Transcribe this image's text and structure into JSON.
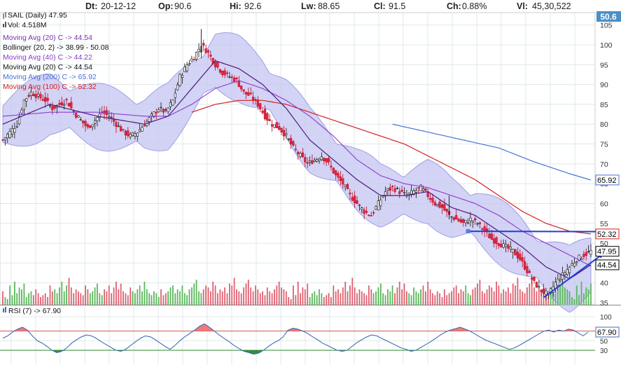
{
  "header": {
    "date_label": "Dt:",
    "date_value": "20-12-12",
    "open_label": "Op:",
    "open_value": "90.6",
    "high_label": "Hi:",
    "high_value": "92.6",
    "low_label": "Lw:",
    "low_value": "88.65",
    "close_label": "Cl:",
    "close_value": "91.5",
    "change_label": "Ch:",
    "change_value": "0.88%",
    "volume_label": "Vl:",
    "volume_value": "45,30,522"
  },
  "legend": {
    "title": "SAIL (Daily) 47.95",
    "volume": "Vol: 4.518M",
    "items": [
      {
        "text": "Moving Avg (20) C -> 44.54",
        "color": "#7b2fb8"
      },
      {
        "text": "Bollinger (20, 2) -> 38.99 - 50.08",
        "color": "#111111"
      },
      {
        "text": "Moving Avg (40) C -> 44.22",
        "color": "#8a3ccf"
      },
      {
        "text": "Moving Avg (20) C -> 44.54",
        "color": "#111111"
      },
      {
        "text": "Moving Avg (200) C -> 65.92",
        "color": "#4a72d6"
      },
      {
        "text": "Moving Avg (100) C -> 52.32",
        "color": "#d62020"
      }
    ]
  },
  "rsi_legend": "RSI (7) -> 67.90",
  "corner_value": "50.6",
  "chart_data": [
    {
      "type": "candlestick",
      "title": "SAIL (Daily) 47.95",
      "ylim": [
        35,
        108
      ],
      "y_ticks": [
        35,
        40,
        45,
        50,
        55,
        60,
        65,
        70,
        75,
        80,
        85,
        90,
        95,
        100,
        105
      ],
      "price_tags": [
        {
          "value": "65.92",
          "y": 65.92,
          "color": "#4a72d6"
        },
        {
          "value": "52.32",
          "y": 52.32,
          "color": "#d62020"
        },
        {
          "value": "47.95",
          "y": 47.95,
          "color": "#000000"
        },
        {
          "value": "44.54",
          "y": 44.54,
          "color": "#000000"
        }
      ],
      "price_path": [
        [
          0,
          76
        ],
        [
          3,
          78
        ],
        [
          6,
          80
        ],
        [
          9,
          86
        ],
        [
          12,
          88
        ],
        [
          15,
          87
        ],
        [
          18,
          86
        ],
        [
          21,
          84
        ],
        [
          24,
          85
        ],
        [
          27,
          86
        ],
        [
          30,
          83
        ],
        [
          33,
          81
        ],
        [
          36,
          79
        ],
        [
          39,
          81
        ],
        [
          42,
          83
        ],
        [
          45,
          82
        ],
        [
          48,
          80
        ],
        [
          51,
          78
        ],
        [
          54,
          77
        ],
        [
          57,
          78
        ],
        [
          60,
          80
        ],
        [
          63,
          82
        ],
        [
          66,
          84
        ],
        [
          69,
          83
        ],
        [
          72,
          86
        ],
        [
          75,
          92
        ],
        [
          78,
          95
        ],
        [
          81,
          97
        ],
        [
          84,
          100
        ],
        [
          87,
          98
        ],
        [
          90,
          95
        ],
        [
          93,
          93
        ],
        [
          96,
          92
        ],
        [
          99,
          91
        ],
        [
          102,
          88
        ],
        [
          105,
          87
        ],
        [
          108,
          85
        ],
        [
          111,
          82
        ],
        [
          114,
          80
        ],
        [
          117,
          79
        ],
        [
          120,
          77
        ],
        [
          123,
          74
        ],
        [
          126,
          72
        ],
        [
          129,
          70
        ],
        [
          132,
          71
        ],
        [
          135,
          72
        ],
        [
          138,
          70
        ],
        [
          141,
          67
        ],
        [
          144,
          65
        ],
        [
          147,
          62
        ],
        [
          150,
          60
        ],
        [
          153,
          58
        ],
        [
          156,
          57
        ],
        [
          159,
          60
        ],
        [
          162,
          63
        ],
        [
          165,
          64
        ],
        [
          168,
          63
        ],
        [
          171,
          62
        ],
        [
          174,
          63
        ],
        [
          177,
          64
        ],
        [
          180,
          62
        ],
        [
          183,
          60
        ],
        [
          186,
          59
        ],
        [
          189,
          57
        ],
        [
          192,
          56
        ],
        [
          195,
          55
        ],
        [
          198,
          56
        ],
        [
          201,
          55
        ],
        [
          204,
          53
        ],
        [
          207,
          51
        ],
        [
          210,
          50
        ],
        [
          213,
          49
        ],
        [
          216,
          48
        ],
        [
          219,
          46
        ],
        [
          222,
          43
        ],
        [
          225,
          40
        ],
        [
          228,
          38
        ],
        [
          231,
          37
        ],
        [
          234,
          40
        ],
        [
          237,
          42
        ],
        [
          240,
          44
        ],
        [
          243,
          46
        ],
        [
          246,
          47
        ],
        [
          249,
          47.95
        ]
      ],
      "ma20_path": [
        [
          0,
          80
        ],
        [
          20,
          85
        ],
        [
          40,
          82
        ],
        [
          60,
          80
        ],
        [
          70,
          82
        ],
        [
          80,
          89
        ],
        [
          90,
          96
        ],
        [
          100,
          94
        ],
        [
          110,
          90
        ],
        [
          120,
          84
        ],
        [
          130,
          76
        ],
        [
          140,
          71
        ],
        [
          150,
          66
        ],
        [
          160,
          62
        ],
        [
          170,
          62
        ],
        [
          180,
          63
        ],
        [
          190,
          59
        ],
        [
          200,
          57
        ],
        [
          210,
          53
        ],
        [
          220,
          49
        ],
        [
          230,
          44
        ],
        [
          240,
          41
        ],
        [
          249,
          44.54
        ]
      ],
      "ma40_path": [
        [
          0,
          82
        ],
        [
          20,
          83
        ],
        [
          40,
          83
        ],
        [
          60,
          82
        ],
        [
          70,
          82
        ],
        [
          80,
          85
        ],
        [
          90,
          89
        ],
        [
          100,
          91
        ],
        [
          110,
          89
        ],
        [
          120,
          86
        ],
        [
          130,
          82
        ],
        [
          140,
          77
        ],
        [
          150,
          71
        ],
        [
          160,
          67
        ],
        [
          170,
          65
        ],
        [
          180,
          64
        ],
        [
          190,
          62
        ],
        [
          200,
          60
        ],
        [
          210,
          57
        ],
        [
          220,
          53
        ],
        [
          230,
          50
        ],
        [
          240,
          47
        ],
        [
          249,
          44.22
        ]
      ],
      "ma100_path": [
        [
          80,
          83
        ],
        [
          90,
          85
        ],
        [
          100,
          86
        ],
        [
          110,
          86
        ],
        [
          120,
          85
        ],
        [
          130,
          83
        ],
        [
          140,
          81
        ],
        [
          150,
          79
        ],
        [
          160,
          77
        ],
        [
          170,
          75
        ],
        [
          180,
          72
        ],
        [
          190,
          69
        ],
        [
          200,
          66
        ],
        [
          210,
          62
        ],
        [
          220,
          58
        ],
        [
          230,
          55
        ],
        [
          240,
          53
        ],
        [
          249,
          52.32
        ]
      ],
      "ma200_path": [
        [
          165,
          80
        ],
        [
          180,
          78
        ],
        [
          195,
          76
        ],
        [
          210,
          74
        ],
        [
          225,
          70.5
        ],
        [
          240,
          67.5
        ],
        [
          249,
          65.92
        ]
      ],
      "bollinger_width": 6.5,
      "trendlines": [
        {
          "from": [
            197,
            53
          ],
          "to": [
            249,
            52.9
          ],
          "color": "#1f3fd0"
        },
        {
          "from": [
            229,
            36.3
          ],
          "to": [
            249,
            47.4
          ],
          "color": "#1f3fd0"
        }
      ]
    },
    {
      "type": "bar",
      "title": "Vol: 4.518M",
      "note": "volume histogram, relative heights 0-1",
      "values": [
        0.35,
        0.2,
        0.15,
        0.5,
        0.25,
        0.6,
        0.3,
        0.45,
        0.4,
        0.55,
        0.2,
        0.3,
        0.35,
        0.25,
        0.4,
        0.3,
        0.2,
        0.25,
        0.3,
        0.2,
        0.5,
        0.35,
        0.4,
        0.3,
        0.45,
        0.6,
        0.35,
        0.5,
        0.7,
        0.45,
        0.3,
        0.4,
        0.35,
        0.3,
        0.25,
        0.5,
        0.4,
        0.3,
        0.35,
        0.45,
        0.55,
        0.3,
        0.25,
        0.4,
        0.35,
        0.5,
        0.3,
        0.45,
        0.6,
        0.4,
        0.55,
        0.35,
        0.3,
        0.25,
        0.45,
        0.35,
        0.3,
        0.4,
        0.5,
        0.35,
        0.6,
        0.4,
        0.3,
        0.25,
        0.35,
        0.3,
        0.2,
        0.4,
        0.25,
        0.3,
        0.35,
        0.45,
        0.5,
        0.3,
        0.4,
        0.35,
        0.5,
        0.3,
        0.25,
        0.4,
        0.45,
        0.55,
        0.65,
        0.35,
        0.3,
        0.4,
        0.5,
        0.45,
        0.35,
        0.6,
        0.5,
        0.3,
        0.4,
        0.35,
        0.45,
        0.3,
        0.55,
        0.5,
        0.7,
        0.4,
        0.35,
        0.3,
        0.45,
        0.55,
        0.65,
        0.45,
        0.35,
        0.5,
        0.4,
        0.3,
        0.35,
        0.25,
        0.45,
        0.35,
        0.3,
        0.4,
        0.5,
        0.6,
        0.45,
        0.4
      ]
    },
    {
      "type": "line",
      "title": "RSI (7) -> 67.90",
      "ylim": [
        0,
        100
      ],
      "y_ticks": [
        30,
        50,
        100
      ],
      "overbought": 70,
      "oversold": 30,
      "last_value": "67.90",
      "values": [
        55,
        60,
        68,
        74,
        78,
        72,
        60,
        50,
        45,
        38,
        30,
        25,
        28,
        35,
        45,
        52,
        58,
        62,
        60,
        55,
        48,
        42,
        36,
        30,
        28,
        32,
        40,
        48,
        55,
        60,
        58,
        52,
        45,
        38,
        32,
        40,
        50,
        58,
        65,
        72,
        80,
        85,
        78,
        70,
        62,
        55,
        48,
        40,
        34,
        28,
        25,
        22,
        24,
        30,
        38,
        45,
        50,
        58,
        72,
        76,
        74,
        70,
        65,
        58,
        52,
        45,
        40,
        35,
        30,
        28,
        30,
        38,
        46,
        52,
        58,
        62,
        60,
        55,
        50,
        45,
        40,
        35,
        32,
        28,
        30,
        36,
        42,
        48,
        55,
        62,
        68,
        72,
        75,
        78,
        74,
        70,
        64,
        58,
        52,
        48,
        44,
        40,
        36,
        32,
        35,
        40,
        46,
        52,
        58,
        64,
        70,
        72,
        68,
        72,
        70,
        74,
        72,
        66,
        60,
        67.9
      ]
    }
  ]
}
